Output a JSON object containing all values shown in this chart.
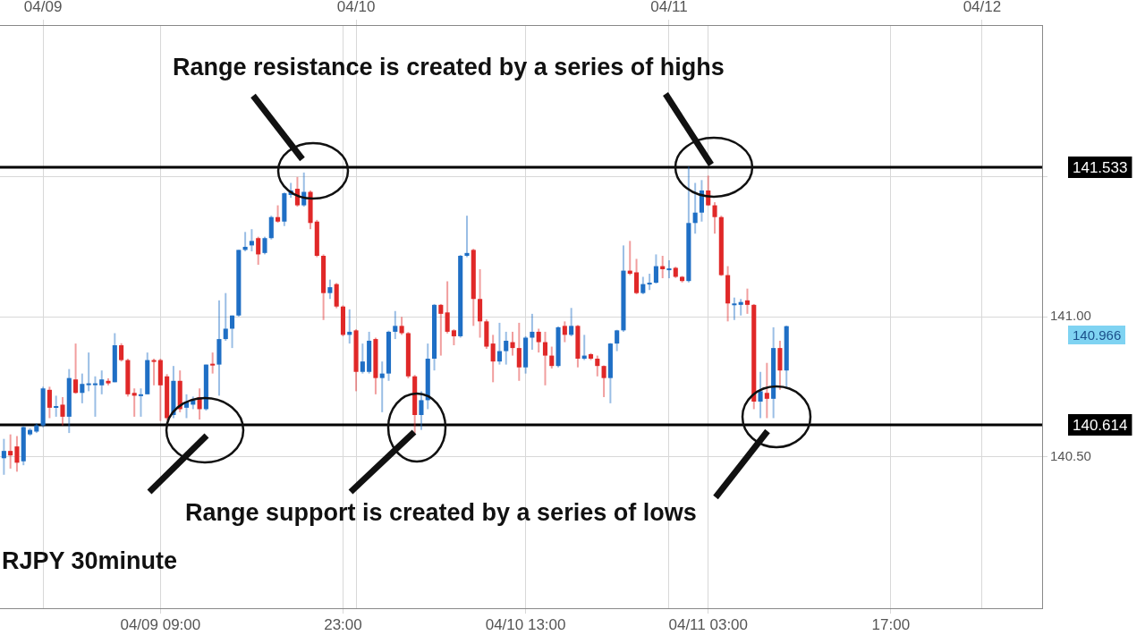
{
  "chart_data": {
    "type": "candlestick",
    "x": [
      "--04-08T21:00",
      "--04-08T21:30",
      "--04-08T22:00",
      "--04-08T22:30",
      "--04-08T23:00",
      "--04-08T23:30",
      "--04-09T00:00",
      "--04-09T00:30",
      "--04-09T01:00",
      "--04-09T01:30",
      "--04-09T02:00",
      "--04-09T02:30",
      "--04-09T03:00",
      "--04-09T03:30",
      "--04-09T04:00",
      "--04-09T04:30",
      "--04-09T05:00",
      "--04-09T05:30",
      "--04-09T06:00",
      "--04-09T06:30",
      "--04-09T07:00",
      "--04-09T07:30",
      "--04-09T08:00",
      "--04-09T08:30",
      "--04-09T09:00",
      "--04-09T09:30",
      "--04-09T10:00",
      "--04-09T10:30",
      "--04-09T11:00",
      "--04-09T11:30",
      "--04-09T12:00",
      "--04-09T12:30",
      "--04-09T13:00",
      "--04-09T13:30",
      "--04-09T14:00",
      "--04-09T14:30",
      "--04-09T15:00",
      "--04-09T15:30",
      "--04-09T16:00",
      "--04-09T16:30",
      "--04-09T17:00",
      "--04-09T17:30",
      "--04-09T18:00",
      "--04-09T18:30",
      "--04-09T19:00",
      "--04-09T19:30",
      "--04-09T20:00",
      "--04-09T20:30",
      "--04-09T21:00",
      "--04-09T21:30",
      "--04-09T22:00",
      "--04-09T22:30",
      "--04-09T23:00",
      "--04-09T23:30",
      "--04-10T00:00",
      "--04-10T00:30",
      "--04-10T01:00",
      "--04-10T01:30",
      "--04-10T02:00",
      "--04-10T02:30",
      "--04-10T03:00",
      "--04-10T03:30",
      "--04-10T04:00",
      "--04-10T04:30",
      "--04-10T05:00",
      "--04-10T05:30",
      "--04-10T06:00",
      "--04-10T06:30",
      "--04-10T07:00",
      "--04-10T07:30",
      "--04-10T08:00",
      "--04-10T08:30",
      "--04-10T09:00",
      "--04-10T09:30",
      "--04-10T10:00",
      "--04-10T10:30",
      "--04-10T11:00",
      "--04-10T11:30",
      "--04-10T12:00",
      "--04-10T12:30",
      "--04-10T13:00",
      "--04-10T13:30",
      "--04-10T14:00",
      "--04-10T14:30",
      "--04-10T15:00",
      "--04-10T15:30",
      "--04-10T16:00",
      "--04-10T16:30",
      "--04-10T17:00",
      "--04-10T17:30",
      "--04-10T18:00",
      "--04-10T18:30",
      "--04-10T19:00",
      "--04-10T19:30",
      "--04-10T20:00",
      "--04-10T20:30",
      "--04-10T21:00",
      "--04-10T21:30",
      "--04-10T22:00",
      "--04-10T22:30",
      "--04-10T23:00",
      "--04-10T23:30",
      "--04-11T00:00",
      "--04-11T00:30",
      "--04-11T01:00",
      "--04-11T01:30",
      "--04-11T02:00",
      "--04-11T02:30",
      "--04-11T03:00",
      "--04-11T03:30",
      "--04-11T04:00",
      "--04-11T04:30",
      "--04-11T05:00",
      "--04-11T05:30",
      "--04-11T06:00",
      "--04-11T06:30",
      "--04-11T07:00",
      "--04-11T07:30",
      "--04-11T08:00",
      "--04-11T08:30",
      "--04-11T09:00"
    ],
    "ohlc": [
      [
        140.495,
        140.564,
        140.436,
        140.521
      ],
      [
        140.521,
        140.58,
        140.458,
        140.505
      ],
      [
        140.537,
        140.574,
        140.447,
        140.479
      ],
      [
        140.484,
        140.61,
        140.47,
        140.606
      ],
      [
        140.58,
        140.602,
        140.575,
        140.596
      ],
      [
        140.59,
        140.62,
        140.585,
        140.612
      ],
      [
        140.612,
        140.75,
        140.605,
        140.744
      ],
      [
        140.739,
        140.75,
        140.638,
        140.675
      ],
      [
        140.675,
        140.718,
        140.643,
        140.681
      ],
      [
        140.686,
        140.713,
        140.612,
        140.643
      ],
      [
        140.643,
        140.813,
        140.585,
        140.781
      ],
      [
        140.776,
        140.904,
        140.725,
        140.728
      ],
      [
        140.728,
        140.797,
        140.691,
        140.76
      ],
      [
        140.758,
        140.872,
        140.734,
        140.762
      ],
      [
        140.758,
        140.787,
        140.643,
        140.762
      ],
      [
        140.755,
        140.808,
        140.723,
        140.776
      ],
      [
        140.771,
        140.78,
        140.755,
        140.762
      ],
      [
        140.766,
        140.941,
        140.766,
        140.898
      ],
      [
        140.898,
        140.905,
        140.84,
        140.845
      ],
      [
        140.845,
        140.85,
        140.715,
        140.723
      ],
      [
        140.728,
        140.744,
        140.643,
        140.718
      ],
      [
        140.718,
        140.744,
        140.643,
        140.723
      ],
      [
        140.723,
        140.872,
        140.723,
        140.845
      ],
      [
        140.845,
        140.85,
        140.755,
        140.84
      ],
      [
        140.845,
        140.85,
        140.628,
        140.755
      ],
      [
        140.787,
        140.795,
        140.63,
        140.638
      ],
      [
        140.649,
        140.824,
        140.638,
        140.771
      ],
      [
        140.771,
        140.808,
        140.659,
        140.67
      ],
      [
        140.675,
        140.723,
        140.638,
        140.696
      ],
      [
        140.686,
        140.715,
        140.67,
        140.702
      ],
      [
        140.713,
        140.744,
        140.633,
        140.67
      ],
      [
        140.67,
        140.829,
        140.665,
        140.829
      ],
      [
        140.832,
        140.872,
        140.797,
        140.827
      ],
      [
        140.829,
        141.058,
        140.718,
        140.92
      ],
      [
        140.92,
        141.084,
        140.914,
        140.957
      ],
      [
        140.957,
        141.004,
        140.888,
        141.004
      ],
      [
        141.004,
        141.238,
        141.0,
        141.238
      ],
      [
        141.238,
        141.302,
        141.233,
        141.249
      ],
      [
        141.254,
        141.312,
        141.233,
        141.27
      ],
      [
        141.28,
        141.285,
        141.185,
        141.222
      ],
      [
        141.227,
        141.285,
        141.222,
        141.28
      ],
      [
        141.28,
        141.36,
        141.275,
        141.355
      ],
      [
        141.355,
        141.397,
        141.335,
        141.339
      ],
      [
        141.339,
        141.443,
        141.323,
        141.44
      ],
      [
        141.434,
        141.477,
        141.424,
        141.45
      ],
      [
        141.456,
        141.498,
        141.392,
        141.397
      ],
      [
        141.397,
        141.514,
        141.392,
        141.445
      ],
      [
        141.445,
        141.45,
        141.312,
        141.334
      ],
      [
        141.339,
        141.345,
        141.212,
        141.217
      ],
      [
        141.217,
        141.222,
        140.988,
        141.084
      ],
      [
        141.084,
        141.132,
        141.063,
        141.105
      ],
      [
        141.116,
        141.12,
        141.03,
        141.036
      ],
      [
        141.036,
        141.04,
        140.93,
        140.935
      ],
      [
        140.935,
        141.026,
        140.904,
        140.946
      ],
      [
        140.951,
        140.955,
        140.734,
        140.803
      ],
      [
        140.803,
        140.904,
        140.797,
        140.84
      ],
      [
        140.803,
        140.946,
        140.797,
        140.914
      ],
      [
        140.92,
        140.925,
        140.723,
        140.781
      ],
      [
        140.781,
        140.84,
        140.659,
        140.797
      ],
      [
        140.797,
        140.95,
        140.771,
        140.946
      ],
      [
        140.946,
        141.02,
        140.92,
        140.967
      ],
      [
        140.967,
        140.999,
        140.935,
        140.941
      ],
      [
        140.941,
        140.945,
        140.78,
        140.787
      ],
      [
        140.787,
        140.792,
        140.585,
        140.649
      ],
      [
        140.649,
        140.734,
        140.596,
        140.702
      ],
      [
        140.702,
        140.904,
        140.67,
        140.85
      ],
      [
        140.85,
        141.045,
        140.808,
        141.042
      ],
      [
        141.042,
        141.045,
        140.861,
        141.01
      ],
      [
        141.015,
        141.126,
        140.94,
        140.946
      ],
      [
        140.951,
        140.955,
        140.898,
        140.93
      ],
      [
        140.93,
        141.22,
        140.925,
        141.217
      ],
      [
        141.217,
        141.36,
        141.212,
        141.227
      ],
      [
        141.238,
        141.242,
        140.967,
        141.063
      ],
      [
        141.063,
        141.169,
        140.925,
        140.983
      ],
      [
        140.983,
        140.99,
        140.885,
        140.893
      ],
      [
        140.904,
        140.935,
        140.766,
        140.84
      ],
      [
        140.84,
        140.978,
        140.829,
        140.877
      ],
      [
        140.877,
        140.946,
        140.829,
        140.914
      ],
      [
        140.909,
        140.946,
        140.861,
        140.888
      ],
      [
        140.888,
        140.978,
        140.771,
        140.819
      ],
      [
        140.819,
        140.93,
        140.797,
        140.925
      ],
      [
        140.925,
        141.01,
        140.882,
        140.946
      ],
      [
        140.946,
        140.957,
        140.872,
        140.909
      ],
      [
        140.909,
        140.946,
        140.755,
        140.861
      ],
      [
        140.861,
        140.893,
        140.815,
        140.824
      ],
      [
        140.824,
        140.965,
        140.819,
        140.962
      ],
      [
        140.967,
        140.983,
        140.909,
        140.935
      ],
      [
        140.935,
        141.031,
        140.93,
        140.967
      ],
      [
        140.967,
        140.97,
        140.819,
        140.85
      ],
      [
        140.85,
        140.935,
        140.845,
        140.861
      ],
      [
        140.866,
        140.87,
        140.845,
        140.85
      ],
      [
        140.85,
        140.861,
        140.787,
        140.824
      ],
      [
        140.824,
        140.826,
        140.713,
        140.781
      ],
      [
        140.781,
        140.906,
        140.691,
        140.904
      ],
      [
        140.904,
        140.953,
        140.877,
        140.951
      ],
      [
        140.951,
        141.254,
        140.946,
        141.164
      ],
      [
        141.164,
        141.27,
        141.148,
        141.153
      ],
      [
        141.158,
        141.206,
        141.08,
        141.084
      ],
      [
        141.084,
        141.142,
        141.08,
        141.116
      ],
      [
        141.116,
        141.153,
        141.095,
        141.121
      ],
      [
        141.121,
        141.222,
        141.118,
        141.18
      ],
      [
        141.18,
        141.217,
        141.137,
        141.169
      ],
      [
        141.169,
        141.201,
        141.137,
        141.172
      ],
      [
        141.174,
        141.178,
        141.138,
        141.142
      ],
      [
        141.142,
        141.145,
        141.122,
        141.127
      ],
      [
        141.127,
        141.535,
        141.122,
        141.334
      ],
      [
        141.334,
        141.477,
        141.296,
        141.371
      ],
      [
        141.371,
        141.487,
        141.339,
        141.45
      ],
      [
        141.45,
        141.503,
        141.395,
        141.397
      ],
      [
        141.397,
        141.408,
        141.296,
        141.355
      ],
      [
        141.355,
        141.36,
        141.145,
        141.148
      ],
      [
        141.148,
        141.18,
        140.983,
        141.047
      ],
      [
        141.042,
        141.068,
        140.988,
        141.047
      ],
      [
        141.042,
        141.063,
        141.004,
        141.052
      ],
      [
        141.058,
        141.1,
        141.01,
        141.042
      ],
      [
        141.042,
        141.045,
        140.67,
        140.697
      ],
      [
        140.697,
        140.803,
        140.638,
        140.734
      ],
      [
        140.728,
        140.835,
        140.638,
        140.707
      ],
      [
        140.707,
        140.962,
        140.638,
        140.888
      ],
      [
        140.888,
        140.914,
        140.739,
        140.808
      ],
      [
        140.808,
        140.968,
        140.744,
        140.966
      ]
    ],
    "xlim": [
      "--04-08T20:42",
      "--04-12T04:36"
    ],
    "xticks": [
      {
        "value": "--04-09T09:00",
        "label": "04/09 09:00"
      },
      {
        "value": "--04-09T23:00",
        "label": "23:00"
      },
      {
        "value": "--04-10T13:00",
        "label": "04/10 13:00"
      },
      {
        "value": "--04-11T03:00",
        "label": "04/11 03:00"
      },
      {
        "value": "--04-11T17:00",
        "label": "17:00"
      }
    ],
    "x2lim": [
      "--04-08T20:42",
      "--04-12T04:36"
    ],
    "x2ticks": [
      {
        "value": "--04-09",
        "label": "04/09"
      },
      {
        "value": "--04-10",
        "label": "04/10"
      },
      {
        "value": "--04-11",
        "label": "04/11"
      },
      {
        "value": "--04-12",
        "label": "04/12"
      }
    ],
    "ylim": [
      139.96,
      142.04
    ],
    "yticks": [
      {
        "value": 140.5,
        "label": "140.50"
      },
      {
        "value": 141,
        "label": "141.00"
      },
      {
        "value": 141.5,
        "label": null
      }
    ],
    "ref_lines": [
      {
        "axis": "y",
        "value": 141.533,
        "label": "141.533",
        "color": "#000000"
      },
      {
        "axis": "y",
        "value": 140.614,
        "label": "140.614",
        "color": "#000000"
      }
    ],
    "annotations": [
      "Range resistance is created by a series of highs",
      "Range support is created by a series of lows",
      "RJPY 30minute",
      "140.966"
    ],
    "grid": true,
    "legend": false
  }
}
